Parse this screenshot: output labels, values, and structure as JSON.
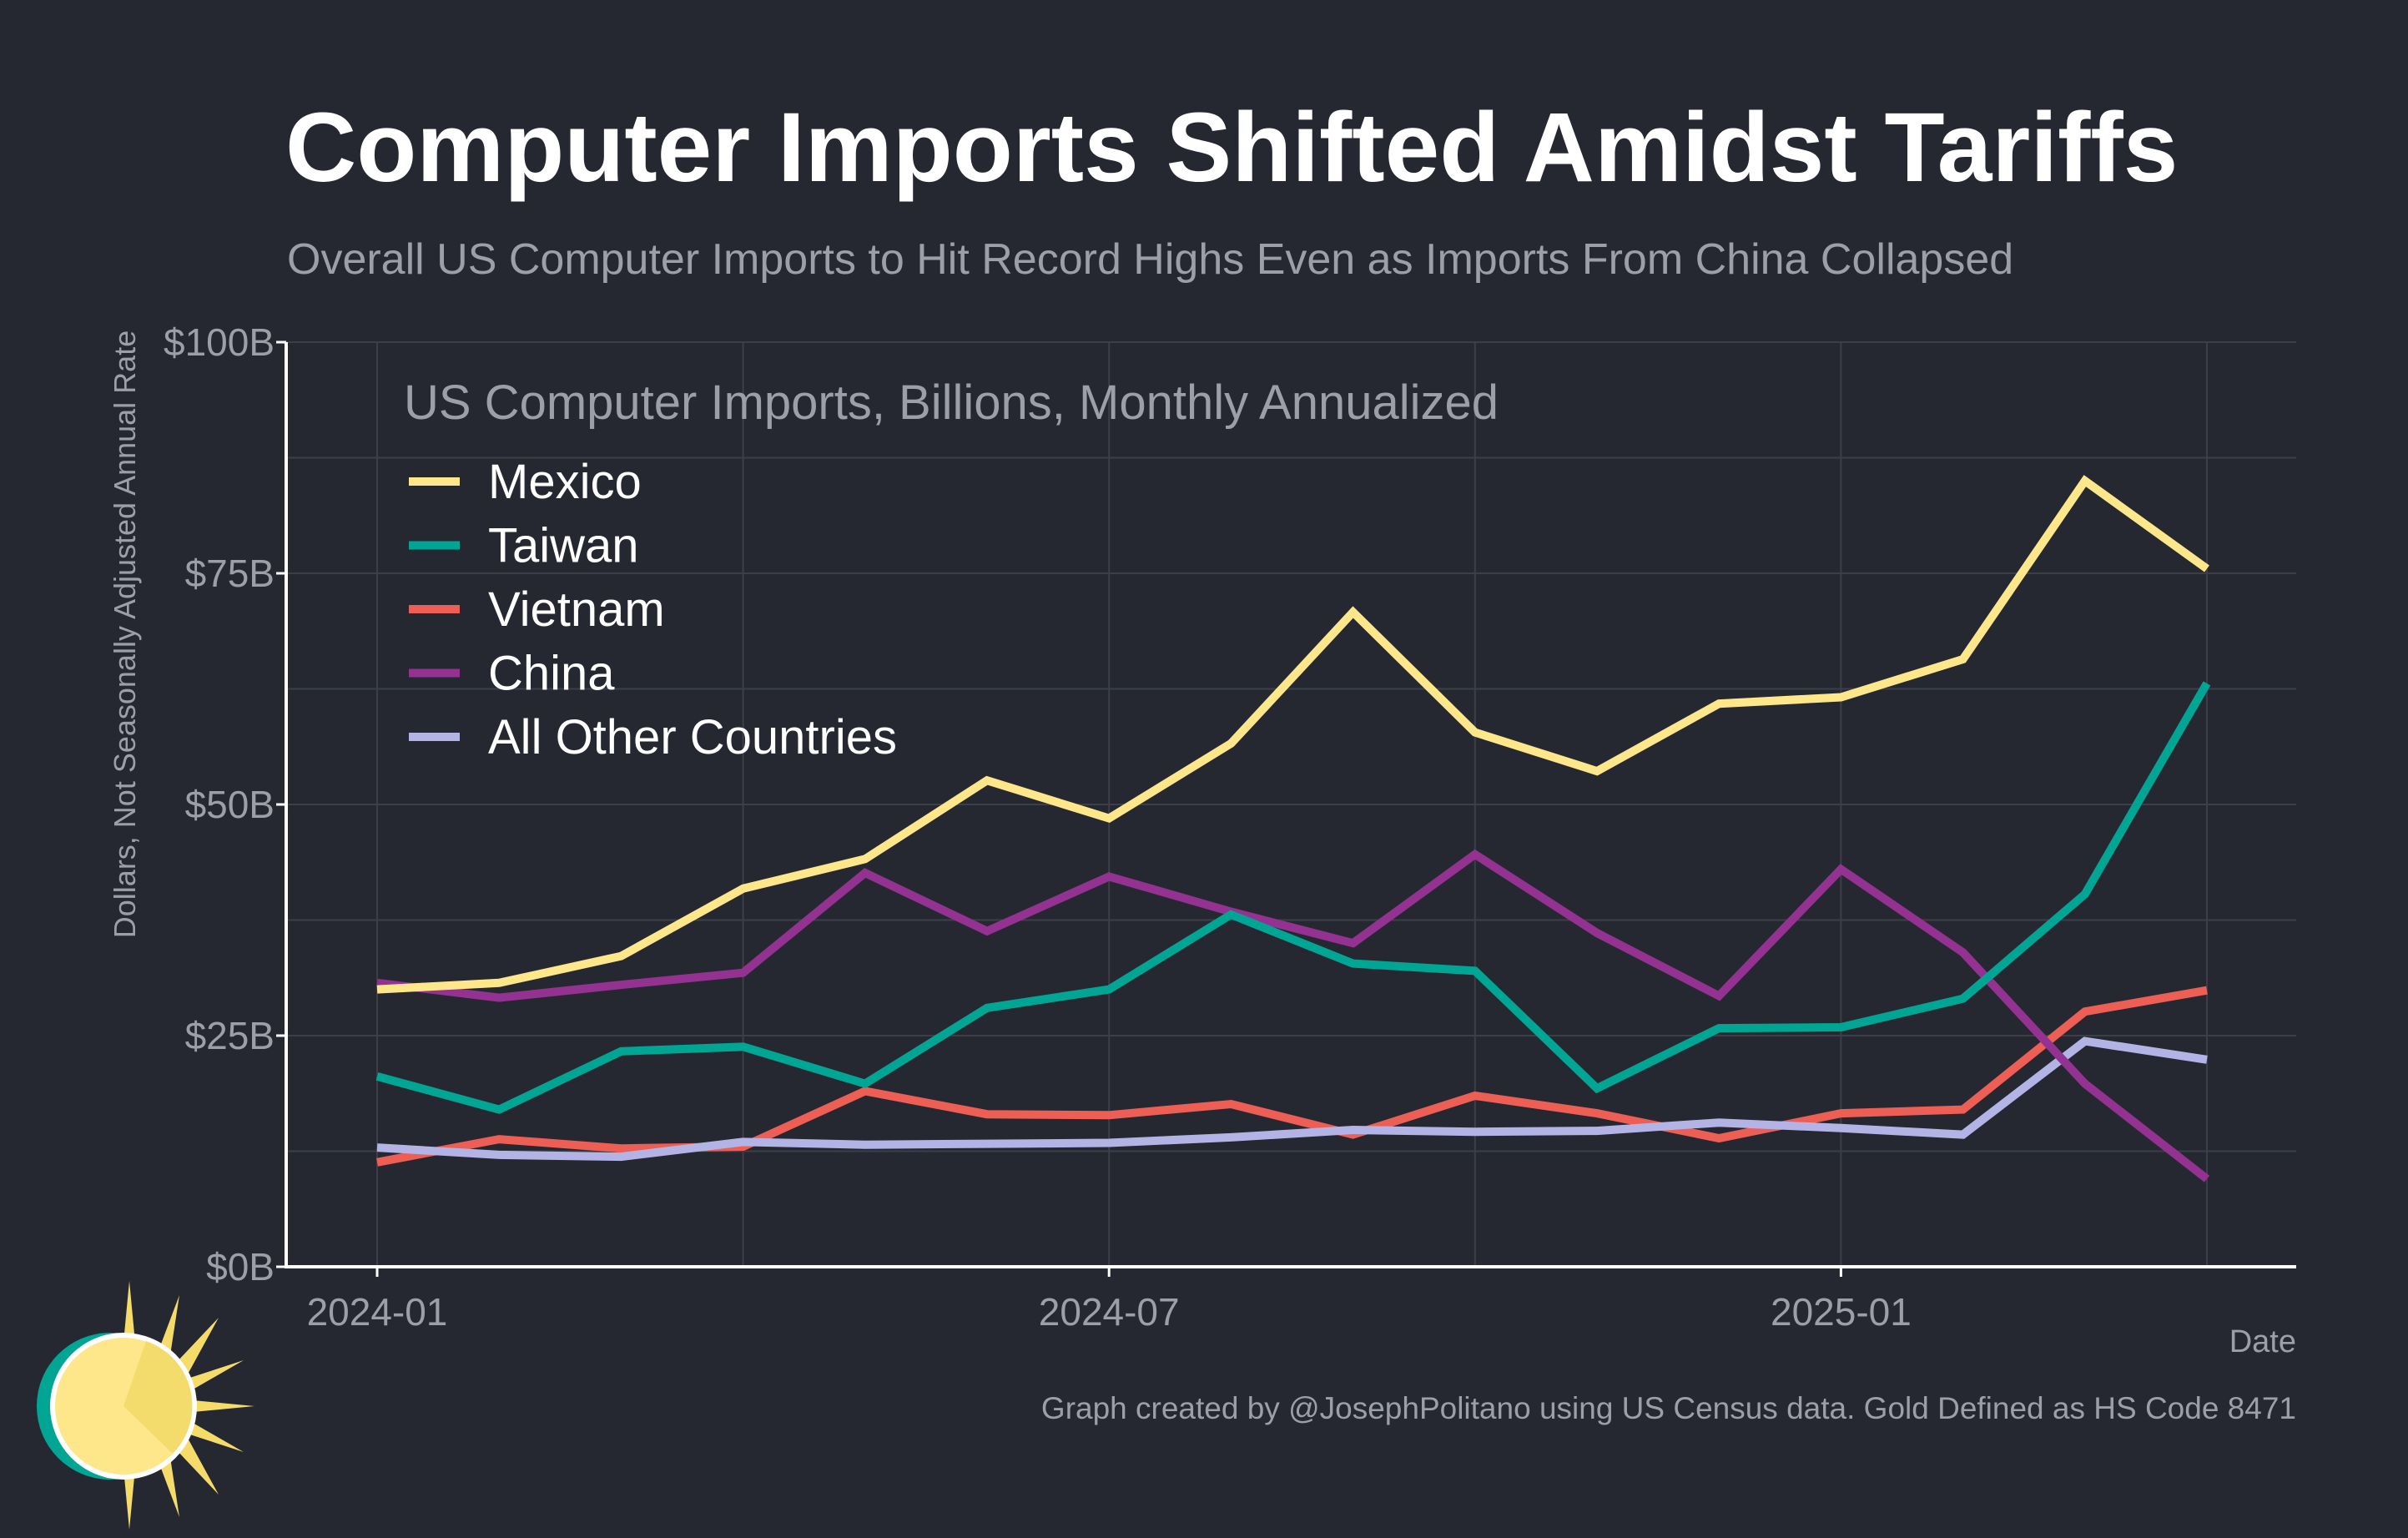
{
  "chart_data": {
    "type": "line",
    "title": "Computer Imports Shifted Amidst Tariffs",
    "subtitle": "Overall US Computer Imports to Hit Record Highs Even as Imports From China Collapsed",
    "legend_title": "US Computer Imports, Billions, Monthly Annualized",
    "ylabel": "Dollars, Not Seasonally Adjusted Annual Rate",
    "xlabel": "Date",
    "source": "Graph created by @JosephPolitano using US Census data. Gold Defined as HS Code 8471",
    "ylim": [
      0,
      100
    ],
    "y_ticks": [
      0,
      25,
      50,
      75,
      100
    ],
    "y_tick_labels": [
      "$0B",
      "$25B",
      "$50B",
      "$75B",
      "$100B"
    ],
    "x_ticks": [
      0,
      6,
      12
    ],
    "x_tick_labels": [
      "2024-01",
      "2024-07",
      "2025-01"
    ],
    "x": [
      "2024-01",
      "2024-02",
      "2024-03",
      "2024-04",
      "2024-05",
      "2024-06",
      "2024-07",
      "2024-08",
      "2024-09",
      "2024-10",
      "2024-11",
      "2024-12",
      "2025-01",
      "2025-02",
      "2025-03",
      "2025-04"
    ],
    "legend_position": "top-left",
    "grid": true,
    "series": [
      {
        "name": "Mexico",
        "color": "#fee68b",
        "values": [
          30,
          30.7,
          33.6,
          40.9,
          44.1,
          52.6,
          48.5,
          56.6,
          70.8,
          57.8,
          53.6,
          60.9,
          61.6,
          65.7,
          85,
          75.5
        ]
      },
      {
        "name": "Taiwan",
        "color": "#00a693",
        "values": [
          20.6,
          17,
          23.3,
          23.8,
          19.8,
          28,
          30,
          38.1,
          32.8,
          32,
          19.3,
          25.8,
          25.9,
          29,
          40.3,
          63.1
        ]
      },
      {
        "name": "Vietnam",
        "color": "#ed5e55",
        "values": [
          11.3,
          13.8,
          12.8,
          13,
          19,
          16.5,
          16.4,
          17.6,
          14.3,
          18.5,
          16.6,
          13.9,
          16.6,
          17,
          27.6,
          29.9
        ]
      },
      {
        "name": "China",
        "color": "#933290",
        "values": [
          30.7,
          29.1,
          30.5,
          31.8,
          42.6,
          36.3,
          42.2,
          38.4,
          35,
          44.6,
          36.1,
          29.3,
          43,
          34,
          19.8,
          9.5
        ]
      },
      {
        "name": "All Other Countries",
        "color": "#b3b3e6",
        "values": [
          12.9,
          12.1,
          11.9,
          13.5,
          13.2,
          13.3,
          13.4,
          14,
          14.8,
          14.6,
          14.7,
          15.6,
          15,
          14.3,
          24.4,
          22.4
        ]
      }
    ]
  }
}
